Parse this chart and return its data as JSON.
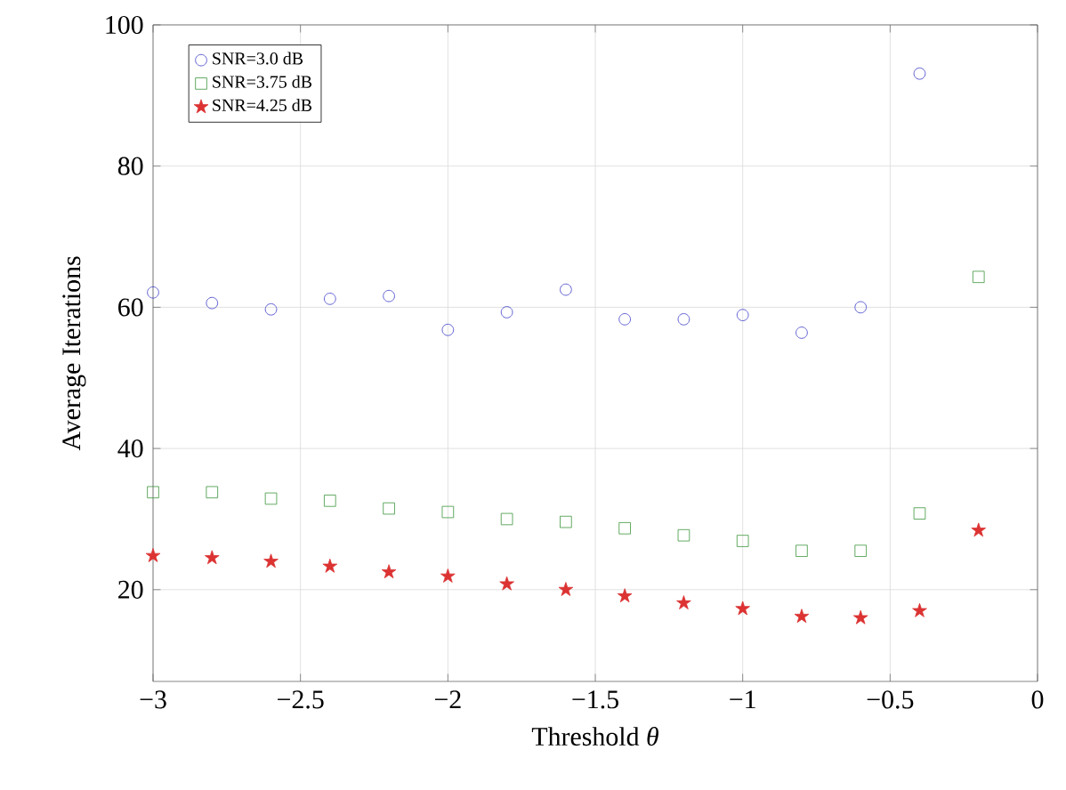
{
  "chart_data": {
    "type": "scatter",
    "xlabel": "Threshold *θ*",
    "ylabel": "Average Iterations",
    "xlim": [
      -3,
      0
    ],
    "ylim": [
      7,
      100
    ],
    "xticks": [
      {
        "value": -3,
        "label": "−3"
      },
      {
        "value": -2.5,
        "label": "−2.5"
      },
      {
        "value": -2,
        "label": "−2"
      },
      {
        "value": -1.5,
        "label": "−1.5"
      },
      {
        "value": -1,
        "label": "−1"
      },
      {
        "value": -0.5,
        "label": "−0.5"
      },
      0
    ],
    "yticks": [
      20,
      40,
      60,
      80,
      100
    ],
    "grid": true,
    "legend": "top left",
    "series": [
      {
        "name": "SNR=3.0 dB",
        "color": "#3a3ac8",
        "marker": "circle",
        "x": [
          -3,
          -2.8,
          -2.6,
          -2.4,
          -2.2,
          -2,
          -1.8,
          -1.6,
          -1.4,
          -1.2,
          -1,
          -0.8,
          -0.6,
          -0.4
        ],
        "values": [
          62.1,
          60.6,
          59.7,
          61.2,
          61.6,
          56.8,
          59.3,
          62.5,
          58.3,
          58.3,
          58.9,
          56.4,
          60.0,
          93.1
        ]
      },
      {
        "name": "SNR=3.75 dB",
        "color": "#3c963c",
        "marker": "square",
        "x": [
          -3,
          -2.8,
          -2.6,
          -2.4,
          -2.2,
          -2,
          -1.8,
          -1.6,
          -1.4,
          -1.2,
          -1,
          -0.8,
          -0.6,
          -0.4,
          -0.2
        ],
        "values": [
          33.8,
          33.8,
          32.9,
          32.6,
          31.5,
          31.0,
          30.0,
          29.6,
          28.7,
          27.7,
          26.9,
          25.5,
          25.5,
          30.8,
          64.3
        ]
      },
      {
        "name": "SNR=4.25 dB",
        "color": "#dc3232",
        "marker": "star",
        "x": [
          -3,
          -2.8,
          -2.6,
          -2.4,
          -2.2,
          -2,
          -1.8,
          -1.6,
          -1.4,
          -1.2,
          -1,
          -0.8,
          -0.6,
          -0.4,
          -0.2
        ],
        "values": [
          24.8,
          24.5,
          24.0,
          23.3,
          22.5,
          21.9,
          20.8,
          20.0,
          19.1,
          18.1,
          17.3,
          16.2,
          16.0,
          17.0,
          28.4
        ]
      }
    ]
  }
}
